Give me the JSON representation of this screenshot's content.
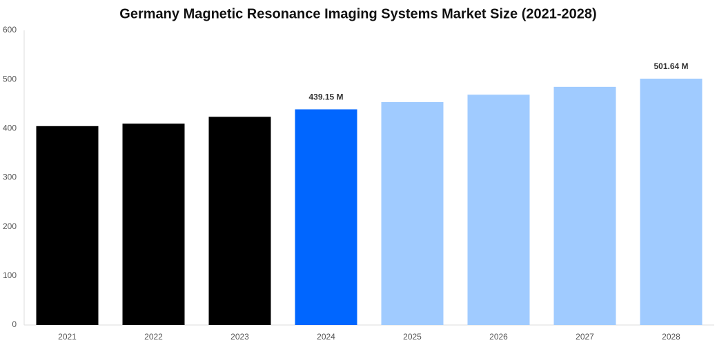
{
  "chart_data": {
    "type": "bar",
    "title": "Germany Magnetic Resonance Imaging Systems Market Size (2021-2028)",
    "categories": [
      "2021",
      "2022",
      "2023",
      "2024",
      "2025",
      "2026",
      "2027",
      "2028"
    ],
    "values": [
      405,
      410,
      424,
      439.15,
      454,
      469,
      485,
      501.64
    ],
    "value_labels": [
      null,
      null,
      null,
      "439.15 M",
      null,
      null,
      null,
      "501.64 M"
    ],
    "colors": [
      "#000000",
      "#000000",
      "#000000",
      "#0066ff",
      "#a0cbff",
      "#a0cbff",
      "#a0cbff",
      "#a0cbff"
    ],
    "ylim": [
      0,
      600
    ],
    "yticks": [
      0,
      100,
      200,
      300,
      400,
      500,
      600
    ],
    "grid": false
  }
}
